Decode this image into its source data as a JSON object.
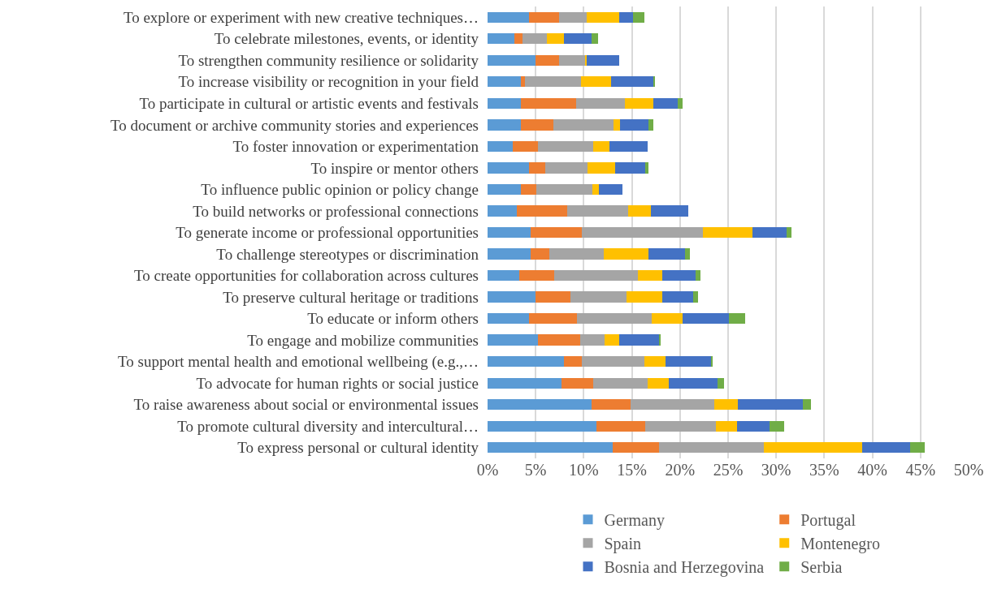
{
  "chart_data": {
    "type": "bar",
    "orientation": "horizontal",
    "stacked": true,
    "grid": "x",
    "legend": "bottom",
    "categories": [
      "To explore or experiment with new creative techniques…",
      "To celebrate milestones, events, or identity",
      "To strengthen community resilience or solidarity",
      "To increase visibility or recognition in your field",
      "To participate in cultural or artistic events and festivals",
      "To document or archive community stories and experiences",
      "To foster innovation or experimentation",
      "To inspire or mentor others",
      "To influence public opinion or policy change",
      "To build networks or professional connections",
      "To generate income or professional opportunities",
      "To challenge stereotypes or discrimination",
      "To create opportunities for collaboration across cultures",
      "To preserve cultural heritage or traditions",
      "To educate or inform others",
      "To engage and mobilize communities",
      "To support mental health and emotional wellbeing (e.g.,…",
      "To advocate for human rights or social justice",
      "To raise awareness about social or environmental issues",
      "To promote cultural diversity and intercultural…",
      "To express personal or cultural identity"
    ],
    "series": [
      {
        "name": "Germany",
        "color": "#5b9bd5",
        "values": [
          4.3,
          2.8,
          5.0,
          3.5,
          3.5,
          3.5,
          2.6,
          4.3,
          3.5,
          3.0,
          4.5,
          4.5,
          3.3,
          5.0,
          4.3,
          5.2,
          7.9,
          7.7,
          10.8,
          11.3,
          13.0
        ]
      },
      {
        "name": "Portugal",
        "color": "#ed7d31",
        "values": [
          3.1,
          0.8,
          2.4,
          0.4,
          5.7,
          3.3,
          2.6,
          1.7,
          1.6,
          5.3,
          5.3,
          1.9,
          3.6,
          3.6,
          5.0,
          4.4,
          1.9,
          3.3,
          4.1,
          5.1,
          4.8
        ]
      },
      {
        "name": "Spain",
        "color": "#a5a5a5",
        "values": [
          2.9,
          2.6,
          2.7,
          5.8,
          5.1,
          6.3,
          5.8,
          4.4,
          5.8,
          6.3,
          12.6,
          5.7,
          8.7,
          5.8,
          7.8,
          2.6,
          6.5,
          5.6,
          8.7,
          7.3,
          10.9
        ]
      },
      {
        "name": "Montenegro",
        "color": "#ffc000",
        "values": [
          3.4,
          1.7,
          0.2,
          3.1,
          2.9,
          0.7,
          1.7,
          2.9,
          0.7,
          2.4,
          5.1,
          4.6,
          2.6,
          3.8,
          3.2,
          1.5,
          2.2,
          2.2,
          2.4,
          2.2,
          10.2
        ]
      },
      {
        "name": "Bosnia and Herzegovina",
        "color": "#4472c4",
        "values": [
          1.4,
          2.9,
          3.4,
          4.4,
          2.6,
          2.9,
          3.9,
          3.1,
          2.4,
          3.9,
          3.6,
          3.8,
          3.4,
          3.2,
          4.8,
          4.1,
          4.7,
          5.1,
          6.8,
          3.4,
          5.0
        ]
      },
      {
        "name": "Serbia",
        "color": "#70ad47",
        "values": [
          1.2,
          0.7,
          0,
          0.2,
          0.5,
          0.5,
          0,
          0.3,
          0,
          0,
          0.5,
          0.5,
          0.5,
          0.5,
          1.7,
          0.2,
          0.2,
          0.7,
          0.8,
          1.5,
          1.5
        ]
      }
    ],
    "xlim": [
      0,
      50
    ],
    "xticks": [
      {
        "value": 0,
        "label": "0%"
      },
      {
        "value": 5,
        "label": "5%"
      },
      {
        "value": 10,
        "label": "10%"
      },
      {
        "value": 15,
        "label": "15%"
      },
      {
        "value": 20,
        "label": "20%"
      },
      {
        "value": 25,
        "label": "25%"
      },
      {
        "value": 30,
        "label": "30%"
      },
      {
        "value": 35,
        "label": "35%"
      },
      {
        "value": 40,
        "label": "40%"
      },
      {
        "value": 45,
        "label": "45%"
      },
      {
        "value": 50,
        "label": "50%"
      }
    ]
  }
}
